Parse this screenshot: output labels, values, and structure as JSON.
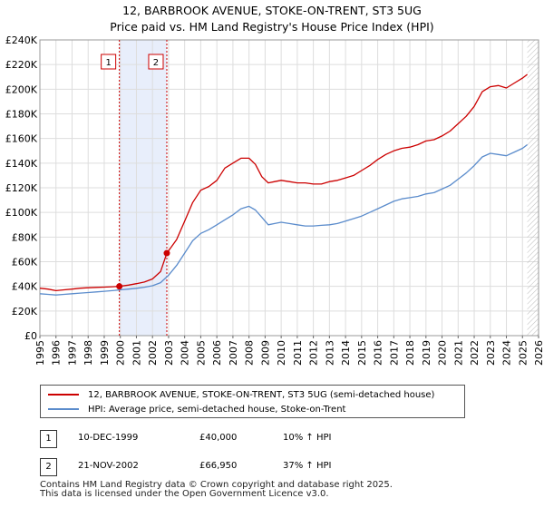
{
  "chart_data": {
    "type": "line",
    "title": "12, BARBROOK AVENUE, STOKE-ON-TRENT, ST3 5UG",
    "subtitle": "Price paid vs. HM Land Registry's House Price Index (HPI)",
    "xlabel": "",
    "ylabel": "",
    "xlim": [
      1995,
      2026
    ],
    "ylim": [
      0,
      240000
    ],
    "grid": true,
    "x_ticks": [
      "1995",
      "1996",
      "1997",
      "1998",
      "1999",
      "2000",
      "2001",
      "2002",
      "2003",
      "2004",
      "2005",
      "2006",
      "2007",
      "2008",
      "2009",
      "2010",
      "2011",
      "2012",
      "2013",
      "2014",
      "2015",
      "2016",
      "2017",
      "2018",
      "2019",
      "2020",
      "2021",
      "2022",
      "2023",
      "2024",
      "2025",
      "2026"
    ],
    "y_ticks": [
      0,
      20000,
      40000,
      60000,
      80000,
      100000,
      120000,
      140000,
      160000,
      180000,
      200000,
      220000,
      240000
    ],
    "y_tick_labels": [
      "£0",
      "£20K",
      "£40K",
      "£60K",
      "£80K",
      "£100K",
      "£120K",
      "£140K",
      "£160K",
      "£180K",
      "£200K",
      "£220K",
      "£240K"
    ],
    "series": [
      {
        "name": "12, BARBROOK AVENUE, STOKE-ON-TRENT, ST3 5UG (semi-detached house)",
        "color": "#cc0000",
        "x": [
          1995.0,
          1995.5,
          1996.0,
          1996.5,
          1997.0,
          1997.5,
          1998.0,
          1998.5,
          1999.0,
          1999.5,
          1999.94,
          2000.5,
          2001.0,
          2001.5,
          2002.0,
          2002.5,
          2002.89,
          2003.5,
          2004.0,
          2004.5,
          2005.0,
          2005.5,
          2006.0,
          2006.5,
          2007.0,
          2007.5,
          2008.0,
          2008.4,
          2008.8,
          2009.2,
          2009.6,
          2010.0,
          2010.5,
          2011.0,
          2011.5,
          2012.0,
          2012.5,
          2013.0,
          2013.5,
          2014.0,
          2014.5,
          2015.0,
          2015.5,
          2016.0,
          2016.5,
          2017.0,
          2017.5,
          2018.0,
          2018.5,
          2019.0,
          2019.5,
          2020.0,
          2020.5,
          2021.0,
          2021.5,
          2022.0,
          2022.5,
          2023.0,
          2023.5,
          2024.0,
          2024.5,
          2025.0,
          2025.3
        ],
        "values": [
          38500,
          37800,
          36500,
          37200,
          37800,
          38500,
          38900,
          39200,
          39400,
          39700,
          40000,
          41000,
          42200,
          43500,
          46000,
          52000,
          66950,
          78000,
          93000,
          108000,
          118000,
          121000,
          126000,
          136000,
          140000,
          144000,
          144000,
          139000,
          129000,
          124000,
          125000,
          126000,
          125000,
          124000,
          124000,
          123000,
          123000,
          125000,
          126000,
          128000,
          130000,
          134000,
          138000,
          143000,
          147000,
          150000,
          152000,
          153000,
          155000,
          158000,
          159000,
          162000,
          166000,
          172000,
          178000,
          186000,
          198000,
          202000,
          203000,
          201000,
          205000,
          209000,
          212000
        ]
      },
      {
        "name": "HPI: Average price, semi-detached house, Stoke-on-Trent",
        "color": "#5b8ccc",
        "x": [
          1995.0,
          1995.5,
          1996.0,
          1996.5,
          1997.0,
          1997.5,
          1998.0,
          1998.5,
          1999.0,
          1999.5,
          2000.0,
          2000.5,
          2001.0,
          2001.5,
          2002.0,
          2002.5,
          2003.0,
          2003.5,
          2004.0,
          2004.5,
          2005.0,
          2005.5,
          2006.0,
          2006.5,
          2007.0,
          2007.5,
          2008.0,
          2008.4,
          2008.8,
          2009.2,
          2009.6,
          2010.0,
          2010.5,
          2011.0,
          2011.5,
          2012.0,
          2012.5,
          2013.0,
          2013.5,
          2014.0,
          2014.5,
          2015.0,
          2015.5,
          2016.0,
          2016.5,
          2017.0,
          2017.5,
          2018.0,
          2018.5,
          2019.0,
          2019.5,
          2020.0,
          2020.5,
          2021.0,
          2021.5,
          2022.0,
          2022.5,
          2023.0,
          2023.5,
          2024.0,
          2024.5,
          2025.0,
          2025.3
        ],
        "values": [
          34000,
          33500,
          33000,
          33500,
          34000,
          34500,
          35000,
          35500,
          36000,
          36500,
          37200,
          37800,
          38400,
          39300,
          40500,
          43000,
          49000,
          57000,
          67000,
          77000,
          83000,
          86000,
          90000,
          94000,
          98000,
          103000,
          105000,
          102000,
          96000,
          90000,
          91000,
          92000,
          91000,
          90000,
          89000,
          89000,
          89500,
          90000,
          91000,
          93000,
          95000,
          97000,
          100000,
          103000,
          106000,
          109000,
          111000,
          112000,
          113000,
          115000,
          116000,
          119000,
          122000,
          127000,
          132000,
          138000,
          145000,
          148000,
          147000,
          146000,
          149000,
          152000,
          155000
        ]
      }
    ],
    "transactions": [
      {
        "label": "1",
        "x": 1999.94,
        "value": 40000
      },
      {
        "label": "2",
        "x": 2002.89,
        "value": 66950
      }
    ],
    "shaded_span": [
      1999.94,
      2002.89
    ]
  },
  "legend": {
    "line1": "12, BARBROOK AVENUE, STOKE-ON-TRENT, ST3 5UG (semi-detached house)",
    "line2": "HPI: Average price, semi-detached house, Stoke-on-Trent"
  },
  "table": [
    {
      "num": "1",
      "date": "10-DEC-1999",
      "price": "£40,000",
      "hpi": "10% ↑ HPI"
    },
    {
      "num": "2",
      "date": "21-NOV-2002",
      "price": "£66,950",
      "hpi": "37% ↑ HPI"
    }
  ],
  "footer": {
    "line1": "Contains HM Land Registry data © Crown copyright and database right 2025.",
    "line2": "This data is licensed under the Open Government Licence v3.0."
  }
}
